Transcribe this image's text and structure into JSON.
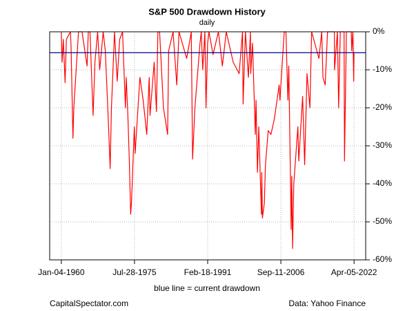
{
  "chart_data": {
    "type": "line",
    "title": "S&P 500 Drawdown History",
    "subtitle": "daily",
    "x_label": "blue line = current drawdown",
    "footer_left": "CapitalSpectator.com",
    "footer_right": "Data: Yahoo Finance",
    "color": "#ff0000",
    "grid": true,
    "y_axis_side": "right",
    "reference_line": {
      "value": -5.5,
      "color": "#00008b"
    },
    "xlim": [
      "1957-07-15",
      "2024-09-25"
    ],
    "xticks": [
      {
        "value": "1960-01-04",
        "label": "Jan-04-1960"
      },
      {
        "value": "1975-07-28",
        "label": "Jul-28-1975"
      },
      {
        "value": "1991-02-18",
        "label": "Feb-18-1991"
      },
      {
        "value": "2006-09-11",
        "label": "Sep-11-2006"
      },
      {
        "value": "2022-04-05",
        "label": "Apr-05-2022"
      }
    ],
    "ylim": [
      -60,
      0
    ],
    "yticks": [
      {
        "value": 0,
        "label": "0%"
      },
      {
        "value": -10,
        "label": "-10%"
      },
      {
        "value": -20,
        "label": "-20%"
      },
      {
        "value": -30,
        "label": "-30%"
      },
      {
        "value": -40,
        "label": "-40%"
      },
      {
        "value": -50,
        "label": "-50%"
      },
      {
        "value": -60,
        "label": "-60%"
      }
    ],
    "x": [
      "1960-01-04",
      "1960-03-08",
      "1960-06-09",
      "1960-10-25",
      "1961-02-01",
      "1961-12-12",
      "1962-02-01",
      "1962-06-26",
      "1962-09-01",
      "1963-03-01",
      "1963-09-01",
      "1964-06-01",
      "1965-06-28",
      "1965-10-01",
      "1966-02-09",
      "1966-10-07",
      "1967-03-01",
      "1967-09-25",
      "1968-03-05",
      "1968-11-29",
      "1969-05-14",
      "1969-12-17",
      "1970-05-26",
      "1970-09-01",
      "1971-03-01",
      "1971-04-28",
      "1971-11-23",
      "1972-06-01",
      "1973-01-11",
      "1973-08-22",
      "1973-10-26",
      "1974-03-01",
      "1974-07-01",
      "1974-10-03",
      "1974-12-06",
      "1975-07-15",
      "1975-09-16",
      "1976-09-21",
      "1977-06-01",
      "1978-03-06",
      "1978-09-12",
      "1978-11-14",
      "1979-10-05",
      "1980-03-27",
      "1980-07-17",
      "1980-11-28",
      "1981-09-25",
      "1982-08-12",
      "1982-11-01",
      "1983-10-10",
      "1984-07-24",
      "1985-01-15",
      "1986-09-01",
      "1987-08-25",
      "1987-12-04",
      "1988-06-01",
      "1989-07-01",
      "1989-10-09",
      "1990-01-30",
      "1990-07-16",
      "1990-10-11",
      "1991-02-13",
      "1991-06-01",
      "1992-04-08",
      "1993-06-01",
      "1994-04-04",
      "1995-02-01",
      "1996-07-24",
      "1997-10-27",
      "1998-07-17",
      "1998-08-31",
      "1999-03-01",
      "1999-10-15",
      "2000-03-24",
      "2000-04-14",
      "2000-09-01",
      "2001-04-04",
      "2001-06-01",
      "2001-09-21",
      "2002-01-01",
      "2002-07-23",
      "2002-08-22",
      "2002-10-09",
      "2003-03-11",
      "2003-06-01",
      "2004-01-01",
      "2004-08-01",
      "2005-04-20",
      "2006-05-01",
      "2006-07-01",
      "2007-05-30",
      "2007-10-09",
      "2008-03-10",
      "2008-05-19",
      "2008-07-15",
      "2008-10-10",
      "2008-11-20",
      "2009-01-06",
      "2009-03-09",
      "2009-06-12",
      "2010-04-23",
      "2010-07-02",
      "2011-04-29",
      "2011-10-03",
      "2012-04-02",
      "2012-11-15",
      "2013-03-28",
      "2014-10-15",
      "2015-05-21",
      "2015-08-25",
      "2016-02-11",
      "2016-08-15",
      "2018-01-26",
      "2018-02-08",
      "2018-09-20",
      "2018-12-24",
      "2019-04-30",
      "2020-02-19",
      "2020-03-23",
      "2020-08-18",
      "2021-09-02",
      "2021-10-04",
      "2022-01-03",
      "2022-03-08",
      "2022-04-05"
    ],
    "values": [
      0,
      -8,
      -2,
      -13.4,
      -2,
      0,
      -4,
      -28,
      -20,
      -10,
      0,
      0,
      -9,
      0,
      0,
      -22,
      -8,
      0,
      -10,
      0,
      -5,
      -22,
      -36,
      -20,
      -5,
      0,
      -13,
      -2,
      0,
      -20,
      -12,
      -22,
      -35,
      -48,
      -45,
      -25,
      -32,
      -12,
      -18,
      -27,
      -12,
      -22,
      -8,
      -21,
      0,
      0,
      -20,
      -27,
      -5,
      0,
      -14,
      0,
      -7,
      0,
      -33.5,
      -20,
      -3,
      0,
      -10,
      0,
      -20,
      -3,
      0,
      -6,
      0,
      -9,
      0,
      -8,
      -11,
      0,
      -19,
      0,
      -12,
      0,
      -11,
      -3,
      -27,
      -18,
      -37,
      -25,
      -48,
      -37,
      -49,
      -45,
      -35,
      -26,
      -27,
      -23,
      -14,
      -18,
      0,
      0,
      -18,
      -9,
      -22,
      -42,
      -52,
      -38,
      -57,
      -40,
      -25,
      -34,
      -17,
      -35,
      -11,
      -20,
      0,
      -7,
      0,
      -12,
      -14,
      0,
      0,
      -10,
      0,
      -20,
      0,
      0,
      -34,
      0,
      0,
      -5,
      0,
      -13,
      -5.5
    ]
  }
}
